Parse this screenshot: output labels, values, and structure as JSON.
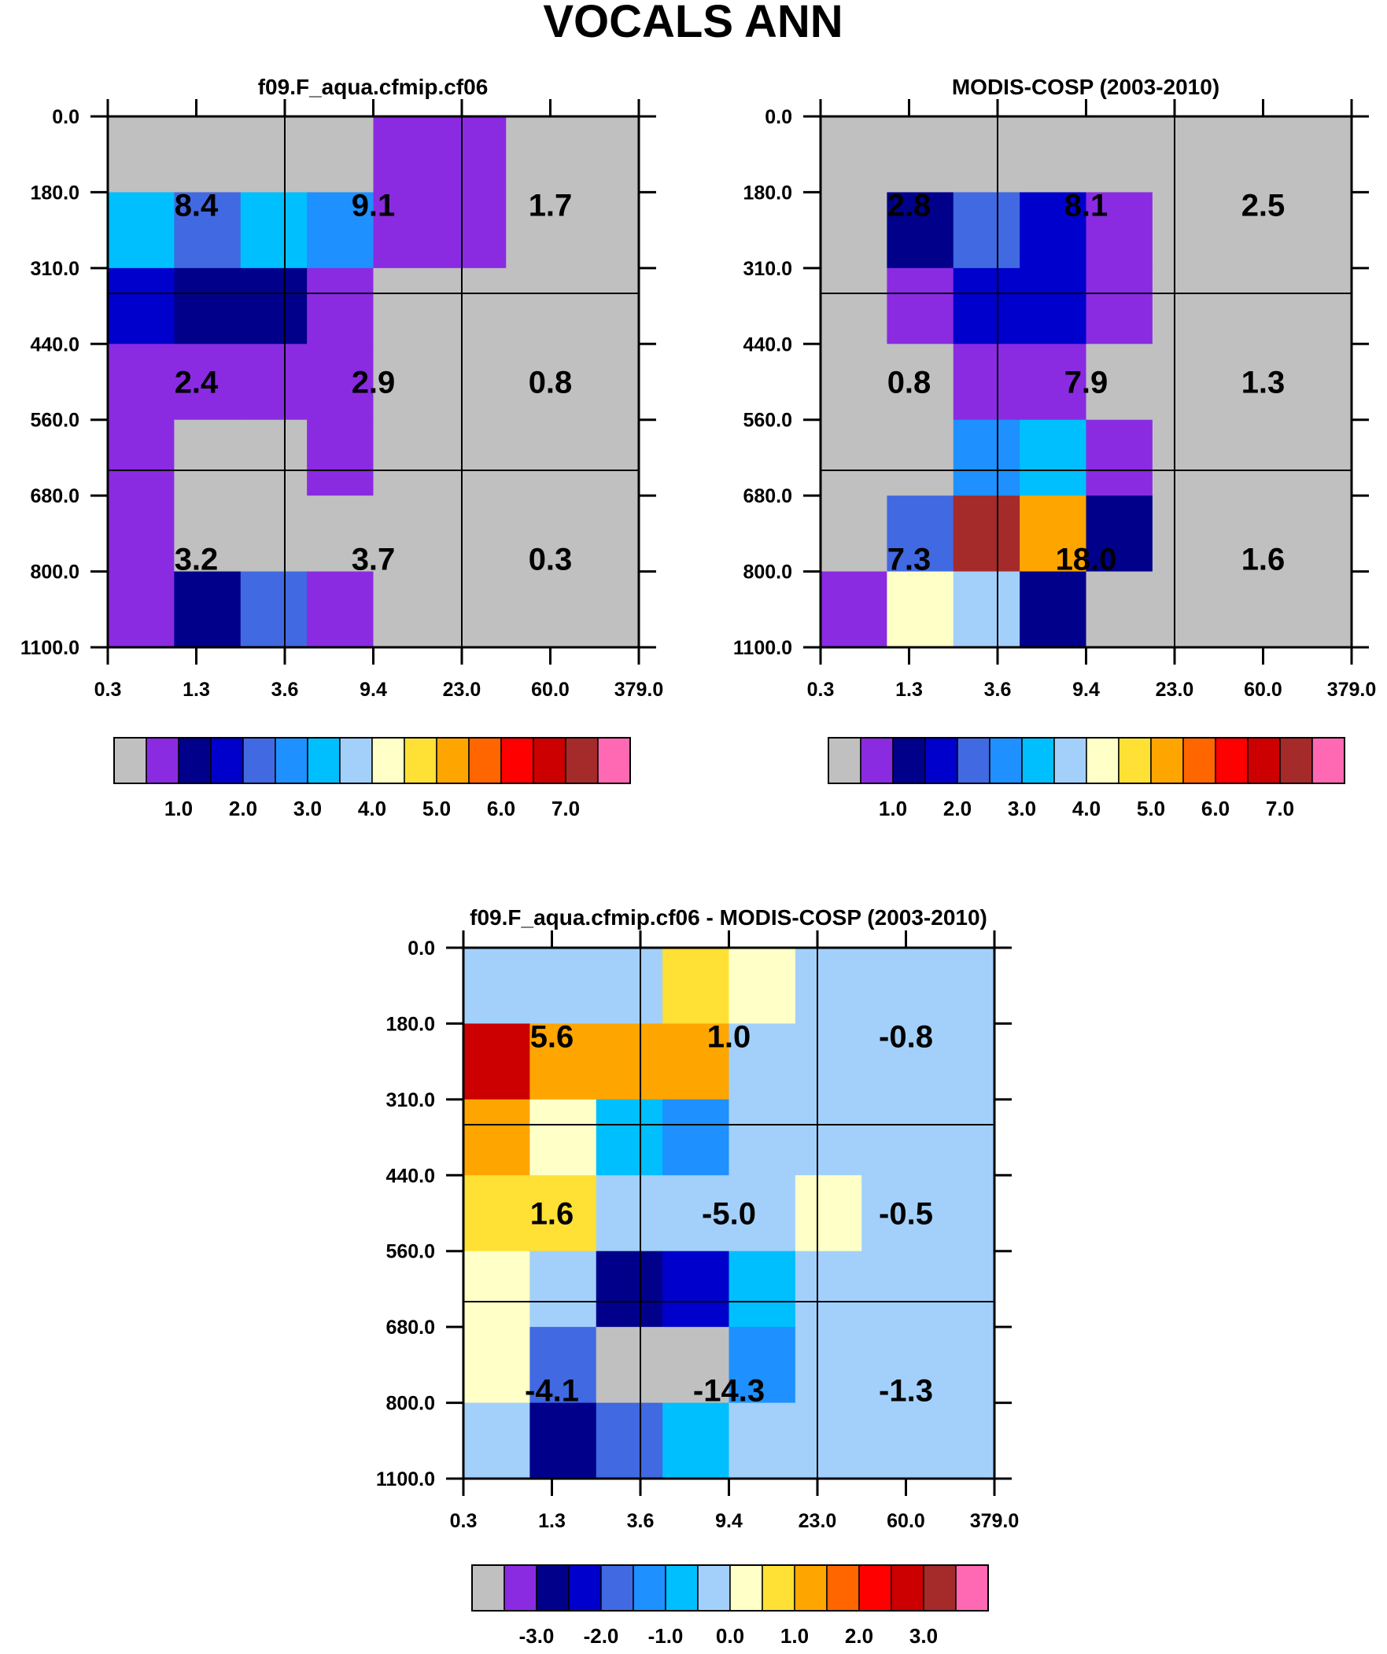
{
  "title": "VOCALS ANN",
  "y_ticks": [
    "0.0",
    "180.0",
    "310.0",
    "440.0",
    "560.0",
    "680.0",
    "800.0",
    "1100.0"
  ],
  "x_ticks": [
    "0.3",
    "1.3",
    "3.6",
    "9.4",
    "23.0",
    "60.0",
    "379.0"
  ],
  "colors": {
    "abs_palette": [
      "#c0c0c0",
      "#8a2be2",
      "#00008b",
      "#0000cd",
      "#4169e1",
      "#1e90ff",
      "#00bfff",
      "#a2d0fb",
      "#ffffc8",
      "#ffe034",
      "#ffa500",
      "#ff6600",
      "#ff0000",
      "#cc0000",
      "#a52a2a",
      "#ff69b4"
    ],
    "diff_palette": [
      "#c0c0c0",
      "#8a2be2",
      "#00008b",
      "#0000cd",
      "#4169e1",
      "#1e90ff",
      "#00bfff",
      "#a2d0fb",
      "#ffffc8",
      "#ffe034",
      "#ffa500",
      "#ff6600",
      "#ff0000",
      "#cc0000",
      "#a52a2a",
      "#ff69b4"
    ]
  },
  "chart_data": [
    {
      "type": "heatmap",
      "id": "model",
      "title": "f09.F_aqua.cfmip.cf06",
      "grid_colors": [
        [
          0,
          0,
          0,
          0,
          1,
          1,
          0,
          0
        ],
        [
          6,
          4,
          6,
          5,
          1,
          1,
          0,
          0
        ],
        [
          3,
          2,
          2,
          1,
          0,
          0,
          0,
          0
        ],
        [
          1,
          1,
          1,
          1,
          0,
          0,
          0,
          0
        ],
        [
          1,
          0,
          0,
          1,
          0,
          0,
          0,
          0
        ],
        [
          1,
          0,
          0,
          0,
          0,
          0,
          0,
          0
        ],
        [
          1,
          2,
          4,
          1,
          0,
          0,
          0,
          0
        ]
      ],
      "cell_values": [
        [
          "8.4",
          "9.1",
          "1.7"
        ],
        [
          "2.4",
          "2.9",
          "0.8"
        ],
        [
          "3.2",
          "3.7",
          "0.3"
        ]
      ],
      "colorbar_labels": [
        "1.0",
        "2.0",
        "3.0",
        "4.0",
        "5.0",
        "6.0",
        "7.0"
      ]
    },
    {
      "type": "heatmap",
      "id": "obs",
      "title": "MODIS-COSP (2003-2010)",
      "grid_colors": [
        [
          0,
          0,
          0,
          0,
          0,
          0,
          0,
          0
        ],
        [
          0,
          2,
          4,
          3,
          1,
          0,
          0,
          0
        ],
        [
          0,
          1,
          3,
          3,
          1,
          0,
          0,
          0
        ],
        [
          0,
          0,
          1,
          1,
          0,
          0,
          0,
          0
        ],
        [
          0,
          0,
          5,
          6,
          1,
          0,
          0,
          0
        ],
        [
          0,
          4,
          14,
          10,
          2,
          0,
          0,
          0
        ],
        [
          1,
          8,
          7,
          2,
          0,
          0,
          0,
          0
        ]
      ],
      "cell_values": [
        [
          "2.8",
          "8.1",
          "2.5"
        ],
        [
          "0.8",
          "7.9",
          "1.3"
        ],
        [
          "7.3",
          "18.0",
          "1.6"
        ]
      ],
      "colorbar_labels": [
        "1.0",
        "2.0",
        "3.0",
        "4.0",
        "5.0",
        "6.0",
        "7.0"
      ]
    },
    {
      "type": "heatmap",
      "id": "diff",
      "title": "f09.F_aqua.cfmip.cf06 - MODIS-COSP (2003-2010)",
      "grid_colors": [
        [
          7,
          7,
          7,
          9,
          8,
          7,
          7,
          7
        ],
        [
          13,
          10,
          10,
          10,
          7,
          7,
          7,
          7
        ],
        [
          10,
          8,
          6,
          5,
          7,
          7,
          7,
          7
        ],
        [
          9,
          9,
          7,
          7,
          7,
          8,
          7,
          7
        ],
        [
          8,
          7,
          2,
          3,
          6,
          7,
          7,
          7
        ],
        [
          8,
          4,
          0,
          0,
          5,
          7,
          7,
          7
        ],
        [
          7,
          2,
          4,
          6,
          7,
          7,
          7,
          7
        ]
      ],
      "cell_values": [
        [
          "5.6",
          "1.0",
          "-0.8"
        ],
        [
          "1.6",
          "-5.0",
          "-0.5"
        ],
        [
          "-4.1",
          "-14.3",
          "-1.3"
        ]
      ],
      "colorbar_labels": [
        "-3.0",
        "-2.0",
        "-1.0",
        "0.0",
        "1.0",
        "2.0",
        "3.0"
      ]
    }
  ]
}
